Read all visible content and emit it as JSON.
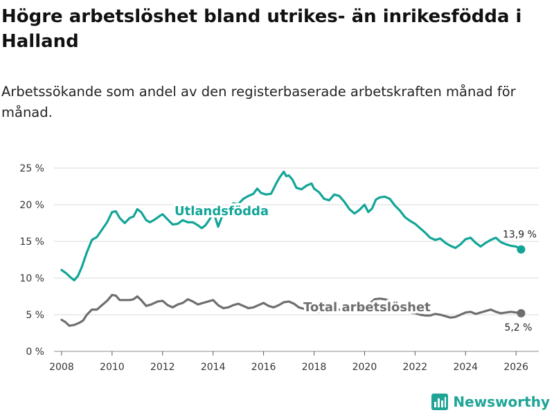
{
  "title": "Högre arbetslöshet bland utrikes- än inrikesfödda i Halland",
  "subtitle": "Arbetssökande som andel av den registerbaserade arbetskraften månad för månad.",
  "brand": {
    "name": "Newsworthy",
    "color": "#1fa596",
    "icon": "bar-chart-logo-icon"
  },
  "colors": {
    "utlandsfodda": "#11a597",
    "total": "#6e6e6e",
    "grid": "#d9d9d9"
  },
  "chart_data": {
    "type": "line",
    "title": "Högre arbetslöshet bland utrikes- än inrikesfödda i Halland",
    "xlabel": "",
    "ylabel": "",
    "xlim": [
      2007.7,
      2026.9
    ],
    "ylim": [
      0,
      25
    ],
    "y_ticks": [
      0,
      5,
      10,
      15,
      20,
      25
    ],
    "y_tick_labels": [
      "0 %",
      "5 %",
      "10 %",
      "15 %",
      "20 %",
      "25 %"
    ],
    "x_ticks": [
      2008,
      2010,
      2012,
      2014,
      2016,
      2018,
      2020,
      2022,
      2024,
      2026
    ],
    "x_tick_labels": [
      "2008",
      "2010",
      "2012",
      "2014",
      "2016",
      "2018",
      "2020",
      "2022",
      "2024",
      "2026"
    ],
    "grid": true,
    "series": [
      {
        "name": "Utlandsfödda",
        "label": "Utlandsfödda",
        "end_label": "13,9 %",
        "x": [
          2008.0,
          2008.2,
          2008.35,
          2008.5,
          2008.65,
          2008.8,
          2009.0,
          2009.2,
          2009.4,
          2009.6,
          2009.8,
          2010.0,
          2010.15,
          2010.3,
          2010.5,
          2010.7,
          2010.85,
          2011.0,
          2011.15,
          2011.35,
          2011.5,
          2011.7,
          2011.9,
          2012.0,
          2012.2,
          2012.4,
          2012.6,
          2012.8,
          2013.0,
          2013.2,
          2013.4,
          2013.55,
          2013.7,
          2013.9,
          2014.0,
          2014.2,
          2014.4,
          2014.6,
          2014.8,
          2015.0,
          2015.2,
          2015.4,
          2015.6,
          2015.75,
          2015.9,
          2016.1,
          2016.3,
          2016.5,
          2016.65,
          2016.8,
          2016.9,
          2017.0,
          2017.15,
          2017.3,
          2017.5,
          2017.7,
          2017.9,
          2018.0,
          2018.2,
          2018.4,
          2018.6,
          2018.8,
          2019.0,
          2019.2,
          2019.4,
          2019.6,
          2019.8,
          2020.0,
          2020.15,
          2020.3,
          2020.45,
          2020.6,
          2020.8,
          2021.0,
          2021.2,
          2021.4,
          2021.6,
          2021.8,
          2022.0,
          2022.2,
          2022.4,
          2022.6,
          2022.8,
          2023.0,
          2023.2,
          2023.4,
          2023.6,
          2023.8,
          2024.0,
          2024.2,
          2024.4,
          2024.6,
          2024.8,
          2025.0,
          2025.2,
          2025.4,
          2025.6,
          2025.8,
          2026.0,
          2026.2
        ],
        "values": [
          11.1,
          10.6,
          10.1,
          9.7,
          10.3,
          11.5,
          13.5,
          15.2,
          15.6,
          16.6,
          17.6,
          19.0,
          19.1,
          18.2,
          17.5,
          18.2,
          18.4,
          19.4,
          19.0,
          17.9,
          17.6,
          18.0,
          18.5,
          18.7,
          18.0,
          17.3,
          17.4,
          17.9,
          17.6,
          17.6,
          17.2,
          16.8,
          17.2,
          18.2,
          19.2,
          17.0,
          18.8,
          19.4,
          20.2,
          20.1,
          20.8,
          21.2,
          21.5,
          22.2,
          21.6,
          21.4,
          21.5,
          22.9,
          23.8,
          24.5,
          23.9,
          24.0,
          23.4,
          22.3,
          22.1,
          22.6,
          22.9,
          22.2,
          21.7,
          20.8,
          20.6,
          21.4,
          21.2,
          20.4,
          19.4,
          18.8,
          19.3,
          20.0,
          19.0,
          19.5,
          20.7,
          21.0,
          21.1,
          20.8,
          19.9,
          19.2,
          18.3,
          17.8,
          17.4,
          16.8,
          16.2,
          15.5,
          15.2,
          15.4,
          14.8,
          14.4,
          14.1,
          14.6,
          15.3,
          15.5,
          14.8,
          14.3,
          14.8,
          15.2,
          15.5,
          14.9,
          14.6,
          14.4,
          14.3,
          13.9
        ]
      },
      {
        "name": "Total arbetslöshet",
        "label": "Total arbetslöshet",
        "end_label": "5,2 %",
        "x": [
          2008.0,
          2008.15,
          2008.3,
          2008.5,
          2008.7,
          2008.85,
          2009.0,
          2009.2,
          2009.4,
          2009.6,
          2009.8,
          2010.0,
          2010.15,
          2010.3,
          2010.5,
          2010.7,
          2010.85,
          2011.0,
          2011.15,
          2011.35,
          2011.55,
          2011.8,
          2012.0,
          2012.2,
          2012.4,
          2012.6,
          2012.8,
          2013.0,
          2013.2,
          2013.4,
          2013.6,
          2013.8,
          2014.0,
          2014.2,
          2014.4,
          2014.6,
          2014.8,
          2015.0,
          2015.2,
          2015.4,
          2015.6,
          2015.8,
          2016.0,
          2016.2,
          2016.4,
          2016.6,
          2016.8,
          2017.0,
          2017.2,
          2017.4,
          2017.6,
          2017.8,
          2018.0,
          2018.2,
          2018.4,
          2018.6,
          2018.8,
          2019.0,
          2019.2,
          2019.4,
          2019.6,
          2019.8,
          2020.0,
          2020.2,
          2020.4,
          2020.6,
          2020.8,
          2021.0,
          2021.2,
          2021.4,
          2021.6,
          2021.8,
          2022.0,
          2022.2,
          2022.4,
          2022.6,
          2022.8,
          2023.0,
          2023.2,
          2023.4,
          2023.6,
          2023.8,
          2024.0,
          2024.2,
          2024.4,
          2024.6,
          2024.8,
          2025.0,
          2025.2,
          2025.4,
          2025.6,
          2025.8,
          2026.0,
          2026.2
        ],
        "values": [
          4.3,
          4.0,
          3.5,
          3.6,
          3.9,
          4.2,
          5.0,
          5.7,
          5.7,
          6.3,
          6.9,
          7.7,
          7.6,
          7.0,
          7.0,
          7.0,
          7.1,
          7.5,
          7.0,
          6.2,
          6.4,
          6.8,
          6.9,
          6.3,
          6.0,
          6.4,
          6.6,
          7.1,
          6.8,
          6.4,
          6.6,
          6.8,
          7.0,
          6.3,
          5.9,
          6.0,
          6.3,
          6.5,
          6.2,
          5.9,
          6.0,
          6.3,
          6.6,
          6.2,
          6.0,
          6.3,
          6.7,
          6.8,
          6.5,
          6.0,
          5.8,
          5.6,
          5.5,
          5.4,
          5.3,
          5.4,
          5.6,
          5.7,
          5.5,
          5.4,
          5.6,
          5.8,
          6.0,
          6.5,
          7.1,
          7.2,
          7.1,
          6.9,
          6.5,
          6.0,
          5.6,
          5.3,
          5.2,
          5.0,
          4.9,
          4.9,
          5.1,
          5.0,
          4.8,
          4.6,
          4.7,
          5.0,
          5.3,
          5.4,
          5.1,
          5.3,
          5.5,
          5.7,
          5.4,
          5.2,
          5.3,
          5.4,
          5.3,
          5.2
        ]
      }
    ]
  }
}
